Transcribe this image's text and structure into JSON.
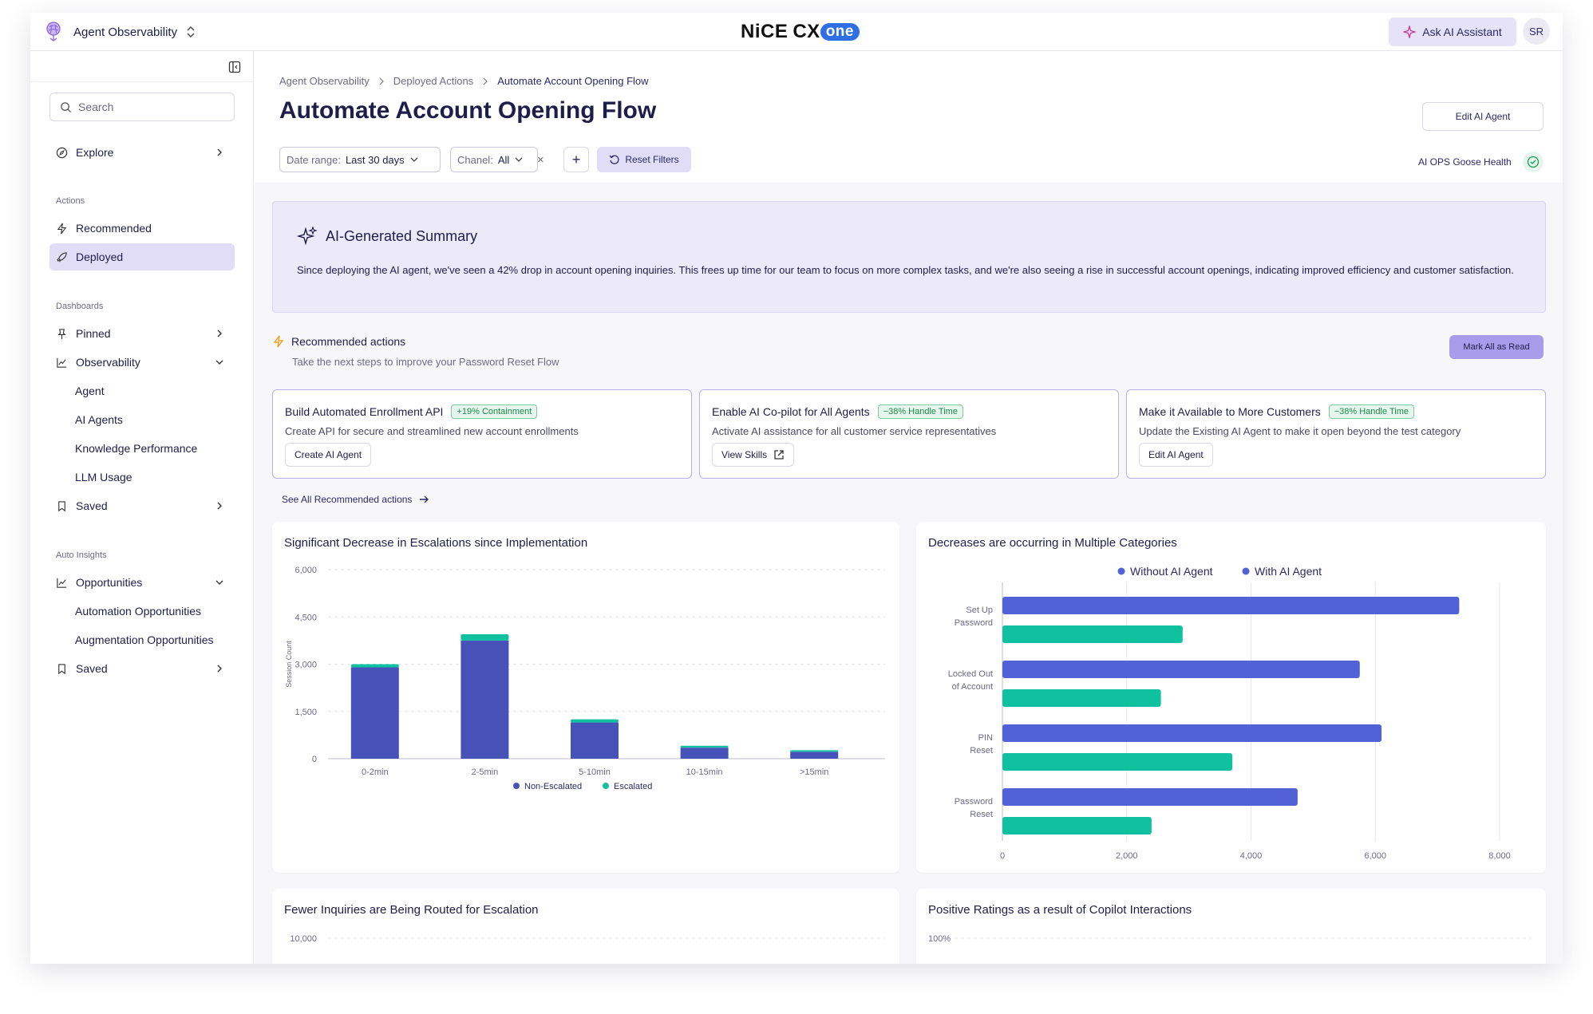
{
  "topbar": {
    "app_name": "Agent Observability",
    "brand_main": "NiCE",
    "brand_cx": "CX",
    "brand_one": "one",
    "ask_ai": "Ask AI Assistant",
    "avatar_initials": "SR"
  },
  "sidebar": {
    "search_placeholder": "Search",
    "explore": "Explore",
    "actions_heading": "Actions",
    "recommended": "Recommended",
    "deployed": "Deployed",
    "dashboards_heading": "Dashboards",
    "pinned": "Pinned",
    "observability": "Observability",
    "observability_items": [
      "Agent",
      "AI Agents",
      "Knowledge Performance",
      "LLM Usage"
    ],
    "saved": "Saved",
    "auto_insights_heading": "Auto Insights",
    "opportunities": "Opportunities",
    "opportunities_items": [
      "Automation Opportunities",
      "Augmentation Opportunities"
    ],
    "saved2": "Saved"
  },
  "breadcrumb": [
    "Agent Observability",
    "Deployed Actions",
    "Automate Account Opening Flow"
  ],
  "page_title": "Automate Account Opening Flow",
  "edit_agent_button": "Edit AI Agent",
  "filters": {
    "date_label": "Date range:",
    "date_value": "Last 30 days",
    "channel_label": "Chanel:",
    "channel_value": "All",
    "clear": "×",
    "add": "+",
    "reset": "Reset Filters"
  },
  "health_label": "AI OPS Goose Health",
  "summary": {
    "title": "AI-Generated Summary",
    "text": "Since deploying the AI agent, we've seen a 42% drop in account opening inquiries. This frees up time for our team to focus on more complex tasks, and we're also seeing a rise in successful account openings, indicating improved efficiency and customer satisfaction."
  },
  "recommended": {
    "title": "Recommended actions",
    "subtitle": "Take the next steps to improve your Password Reset Flow",
    "mark_all": "Mark All as Read",
    "see_all": "See All Recommended actions",
    "cards": [
      {
        "title": "Build Automated Enrollment API",
        "badge": "+19% Containment",
        "desc": "Create API for secure and streamlined new account enrollments",
        "button": "Create AI Agent"
      },
      {
        "title": "Enable AI Co-pilot for All Agents",
        "badge": "−38% Handle Time",
        "desc": "Activate AI assistance for all customer service representatives",
        "button": "View Skills"
      },
      {
        "title": "Make it Available to More Customers",
        "badge": "−38% Handle Time",
        "desc": "Update the Existing AI Agent to make it open beyond the test category",
        "button": "Edit AI Agent"
      }
    ]
  },
  "colors": {
    "primary_bar": "#4752b8",
    "secondary_bar": "#10c1a0",
    "hbar_primary": "#5161d6",
    "accent": "#a99ceb"
  },
  "chart_data": [
    {
      "type": "bar",
      "stacked": true,
      "title": "Significant Decrease in Escalations since Implementation",
      "ylabel": "Session Count",
      "categories": [
        "0-2min",
        "2-5min",
        "5-10min",
        "10-15min",
        ">15min"
      ],
      "series": [
        {
          "name": "Non-Escalated",
          "values": [
            2900,
            3750,
            1150,
            350,
            220
          ]
        },
        {
          "name": "Escalated",
          "values": [
            100,
            200,
            100,
            60,
            50
          ]
        }
      ],
      "ylim": [
        0,
        6000
      ],
      "yticks": [
        "6,000",
        "4,500",
        "3,000",
        "1,500",
        "0"
      ],
      "grid": true,
      "legend": "bottom"
    },
    {
      "type": "bar",
      "orientation": "horizontal",
      "title": "Decreases are occurring in Multiple Categories",
      "categories": [
        [
          "Set Up",
          "Password"
        ],
        [
          "Locked Out",
          "of Account"
        ],
        [
          "PIN",
          "Reset"
        ],
        [
          "Password",
          "Reset"
        ]
      ],
      "series": [
        {
          "name": "Without AI Agent",
          "values": [
            7350,
            5750,
            6100,
            4750
          ]
        },
        {
          "name": "With AI Agent",
          "values": [
            2900,
            2550,
            3700,
            2400
          ]
        }
      ],
      "xlim": [
        0,
        8000
      ],
      "xticks": [
        "0",
        "2,000",
        "4,000",
        "6,000",
        "8,000"
      ],
      "grid": true,
      "legend": "top"
    },
    {
      "type": "line",
      "title": "Fewer Inquiries are Being Routed for Escalation",
      "yticks": [
        "10,000"
      ]
    },
    {
      "type": "line",
      "title": "Positive Ratings as a result of Copilot Interactions",
      "yticks": [
        "100%"
      ]
    }
  ]
}
